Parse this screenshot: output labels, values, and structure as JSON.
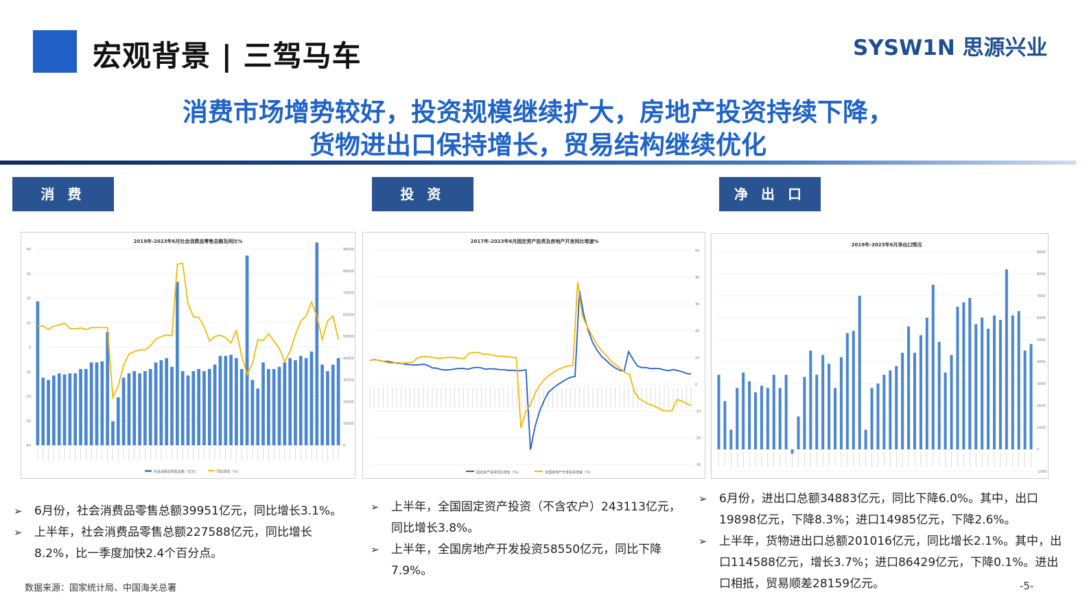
{
  "header": {
    "title": "宏观背景 | 三驾马车",
    "brand": "SYSW1N 思源兴业"
  },
  "headline": {
    "line1": "消费市场增势较好，投资规模继续扩大，房地产投资持续下降，",
    "line2": "货物进出口保持增长，贸易结构继续优化"
  },
  "tags": [
    "消 费",
    "投 资",
    "净 出 口"
  ],
  "panels": [
    {
      "bullets": [
        "6月份，社会消费品零售总额39951亿元，同比增长3.1%。",
        "上半年，社会消费品零售总额227588亿元，同比增长8.2%，比一季度加快2.4个百分点。"
      ]
    },
    {
      "bullets": [
        "上半年，全国固定资产投资（不含农户）243113亿元，同比增长3.8%。",
        "上半年，全国房地产开发投资58550亿元，同比下降7.9%。"
      ]
    },
    {
      "bullets": [
        "6月份，进出口总额34883亿元，同比下降6.0%。其中，出口19898亿元，下降8.3%；进口14985亿元，下降2.6%。",
        "上半年，货物进出口总额201016亿元，同比增长2.1%。其中，出口114588亿元，增长3.7%；进口86429亿元，下降0.1%。进出口相抵，贸易顺差28159亿元。"
      ]
    }
  ],
  "footer": {
    "source": "数据来源：国家统计局、中国海关总署",
    "page": "-5-"
  },
  "colors": {
    "bar": "#4a86d0",
    "line_yellow": "#f5b800",
    "line_blue": "#1f5fc6"
  },
  "chart_data": [
    {
      "type": "bar",
      "title": "2019年-2023年6月社会消费品零售总额及同比%",
      "legend": [
        "社会消费品零售总额（亿元）",
        "同比增长（%）"
      ],
      "legend_position": "bottom",
      "grid": true,
      "ylim_left": [
        -40,
        40
      ],
      "ylim_right": [
        0,
        90000
      ],
      "yticks_left": [
        "40",
        "30",
        "20",
        "10",
        "0",
        "-10",
        "-20",
        "-30",
        "-40"
      ],
      "yticks_right": [
        "90000",
        "80000",
        "70000",
        "60000",
        "50000",
        "40000",
        "30000",
        "20000",
        "10000",
        "0"
      ],
      "series": [
        {
          "name": "社会消费品零售总额（亿元）",
          "axis": "right",
          "values": [
            66000,
            31000,
            30000,
            32000,
            33000,
            32500,
            33000,
            33000,
            35000,
            35000,
            38000,
            38000,
            38500,
            52000,
            11000,
            22000,
            31000,
            33000,
            34000,
            33000,
            34000,
            35000,
            38000,
            39000,
            40000,
            36000,
            75000,
            34000,
            32000,
            34000,
            35000,
            34000,
            35000,
            37000,
            41000,
            41000,
            41500,
            40000,
            35000,
            87000,
            30000,
            26000,
            38000,
            35000,
            35000,
            36000,
            38000,
            40000,
            39000,
            41000,
            40000,
            43000,
            93000,
            37000,
            34000,
            37000,
            40000
          ]
        },
        {
          "name": "同比增长（%）",
          "axis": "left",
          "values": [
            8.6,
            8.7,
            7.2,
            8.6,
            9.0,
            9.8,
            7.6,
            7.5,
            7.8,
            7.2,
            8.0,
            8.0,
            8.0,
            8.0,
            -20.5,
            -15.8,
            -7.5,
            -2.8,
            -1.8,
            -1.1,
            -1.1,
            0.5,
            3.3,
            4.3,
            5.0,
            4.6,
            33.8,
            34.2,
            17.7,
            12.4,
            12.1,
            8.5,
            2.5,
            4.4,
            4.9,
            3.9,
            1.7,
            6.7,
            -3.5,
            -11.1,
            -6.7,
            3.1,
            2.7,
            5.4,
            2.5,
            -0.5,
            -5.9,
            -1.8,
            5.0,
            10.6,
            12.7,
            18.4,
            12.7,
            3.1,
            10.6,
            12.7,
            3.1
          ]
        }
      ]
    },
    {
      "type": "line",
      "title": "2017年-2023年6月固定资产投资及房地产开发同比增速%",
      "legend": [
        "固定资产投资同比增长（%）",
        "全国房地产开发投资增速（%）"
      ],
      "legend_position": "bottom",
      "grid": true,
      "ylim": [
        -30,
        50
      ],
      "yticks": [
        "50",
        "40",
        "30",
        "20",
        "10",
        "0",
        "-10",
        "-20",
        "-30"
      ],
      "series": [
        {
          "name": "固定资产投资同比增长（%）",
          "values": [
            8.9,
            9.2,
            8.9,
            8.6,
            8.5,
            8.2,
            7.9,
            7.8,
            7.5,
            7.3,
            7.2,
            7.2,
            7.5,
            7.0,
            6.1,
            6.0,
            5.5,
            5.3,
            5.4,
            5.7,
            5.9,
            5.9,
            5.6,
            6.1,
            6.3,
            6.1,
            5.6,
            5.8,
            5.7,
            5.5,
            5.4,
            5.2,
            5.2,
            5.0,
            5.1,
            5.4,
            -24.5,
            -16.1,
            -10.3,
            -6.3,
            -3.1,
            -1.6,
            -0.3,
            0.8,
            1.8,
            2.6,
            2.9,
            35.0,
            25.6,
            19.9,
            15.4,
            12.6,
            10.3,
            8.9,
            7.3,
            6.1,
            5.2,
            4.9,
            12.2,
            9.3,
            6.8,
            6.2,
            6.2,
            5.8,
            5.9,
            5.8,
            5.3,
            5.1,
            5.5,
            5.1,
            4.7,
            4.0,
            3.8
          ]
        },
        {
          "name": "全国房地产开发投资增速（%）",
          "values": [
            8.9,
            9.3,
            8.8,
            8.5,
            7.9,
            7.9,
            8.1,
            7.8,
            8.1,
            8.1,
            9.7,
            10.4,
            10.3,
            10.1,
            9.8,
            9.7,
            9.9,
            10.1,
            9.9,
            9.7,
            9.5,
            11.6,
            11.8,
            11.9,
            11.2,
            11.2,
            10.9,
            10.5,
            10.5,
            10.3,
            10.1,
            9.9,
            -16.3,
            -10.3,
            -7.7,
            -3.3,
            -0.3,
            1.9,
            3.4,
            4.6,
            5.6,
            6.3,
            6.8,
            7.0,
            38.3,
            25.6,
            21.6,
            18.3,
            15.0,
            12.7,
            10.9,
            8.8,
            7.2,
            6.0,
            4.4,
            3.7,
            -2.7,
            -5.4,
            -6.4,
            -7.4,
            -8.0,
            -8.8,
            -9.8,
            -10.0,
            -9.8,
            -5.8,
            -6.2,
            -7.2,
            -7.9
          ]
        }
      ]
    },
    {
      "type": "bar",
      "title": "2019年-2023年6月净出口情况",
      "grid": true,
      "ylim": [
        -1000,
        9000
      ],
      "yticks": [
        "9000",
        "8000",
        "7000",
        "6000",
        "5000",
        "4000",
        "3000",
        "2000",
        "1000",
        "0",
        "-1000"
      ],
      "values": [
        3400,
        2200,
        900,
        2800,
        3500,
        3100,
        2600,
        2900,
        2800,
        3400,
        2800,
        3400,
        -200,
        1500,
        3300,
        4500,
        3400,
        4300,
        3900,
        2800,
        4200,
        5300,
        5400,
        7000,
        900,
        2800,
        3000,
        3400,
        3600,
        3800,
        4400,
        5600,
        4400,
        5200,
        6000,
        7500,
        4900,
        3500,
        4300,
        6500,
        6700,
        6900,
        5700,
        6000,
        5500,
        6100,
        5900,
        8200,
        6100,
        6300,
        4500,
        4800
      ]
    }
  ]
}
